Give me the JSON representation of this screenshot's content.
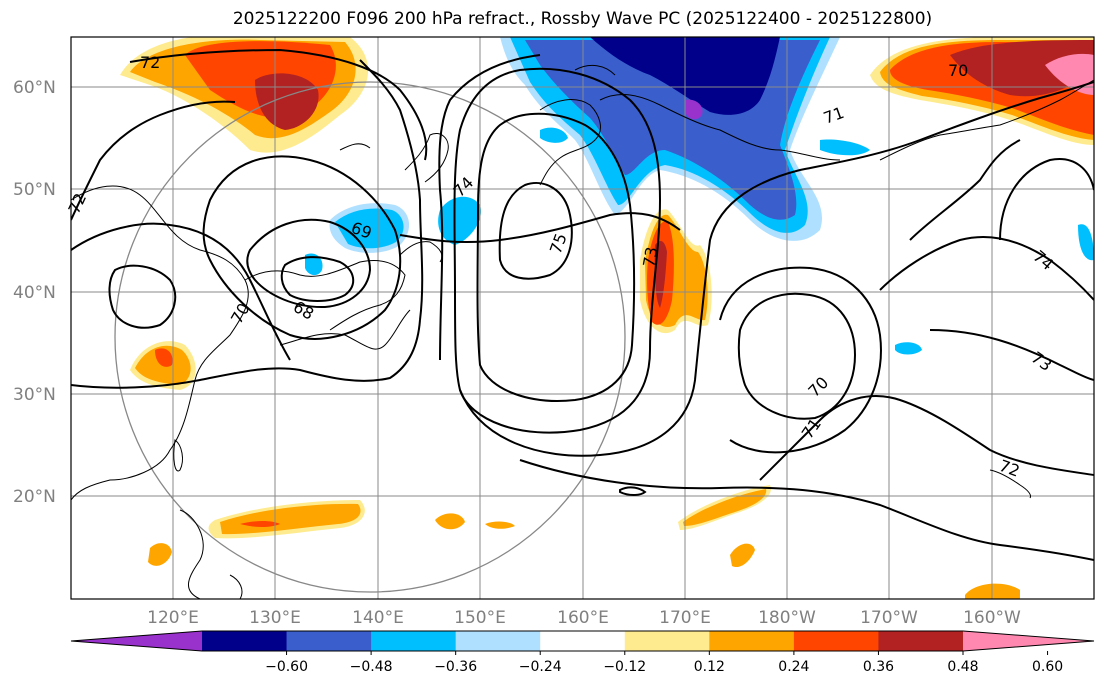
{
  "title": "2025122200 F096 200 hPa refract., Rossby Wave PC (2025122400 - 2025122800)",
  "lat_labels": [
    "60°N",
    "50°N",
    "40°N",
    "30°N",
    "20°N"
  ],
  "lon_labels": [
    "120°E",
    "130°E",
    "140°E",
    "150°E",
    "160°E",
    "170°E",
    "180°W",
    "170°W",
    "160°W"
  ],
  "colorbar": {
    "colors": [
      "#9932cc",
      "#00008b",
      "#3a5fcd",
      "#00bfff",
      "#b0e0ff",
      "#ffffff",
      "#ffeb8f",
      "#ffa500",
      "#ff4500",
      "#b22222",
      "#ff88b0"
    ],
    "tick_labels": [
      "−0.60",
      "−0.48",
      "−0.36",
      "−0.24",
      "−0.12",
      "0.12",
      "0.24",
      "0.36",
      "0.48",
      "0.60"
    ]
  },
  "contour_labels": [
    {
      "text": "72",
      "id": "c72a"
    },
    {
      "text": "72",
      "id": "c72b"
    },
    {
      "text": "72",
      "id": "c72c"
    },
    {
      "text": "70",
      "id": "c70a"
    },
    {
      "text": "70",
      "id": "c70b"
    },
    {
      "text": "70",
      "id": "c70c"
    },
    {
      "text": "71",
      "id": "c71a"
    },
    {
      "text": "71",
      "id": "c71b"
    },
    {
      "text": "74",
      "id": "c74a"
    },
    {
      "text": "74",
      "id": "c74b"
    },
    {
      "text": "75",
      "id": "c75"
    },
    {
      "text": "73",
      "id": "c73a"
    },
    {
      "text": "73",
      "id": "c73b"
    },
    {
      "text": "69",
      "id": "c69"
    },
    {
      "text": "68",
      "id": "c68"
    }
  ]
}
